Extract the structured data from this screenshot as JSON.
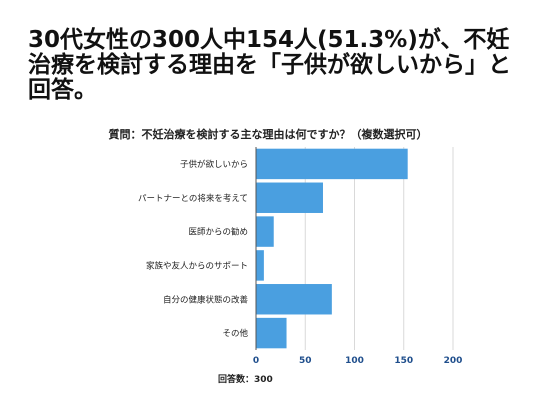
{
  "header": {
    "headline": "30代女性の300人中154人(51.3%)が、不妊治療を検討する理由を「子供が欲しいから」と回答。"
  },
  "chart_data": {
    "type": "bar",
    "orientation": "horizontal",
    "title": "質問：不妊治療を検討する主な理由は何ですか？（複数選択可）",
    "categories": [
      "子供が欲しいから",
      "パートナーとの将来を考えて",
      "医師からの勧め",
      "家族や友人からのサポート",
      "自分の健康状態の改善",
      "その他"
    ],
    "values": [
      154,
      68,
      18,
      8,
      77,
      31
    ],
    "xlabel": "回答数：300",
    "xlim": [
      0,
      200
    ],
    "xticks": [
      0,
      50,
      100,
      150,
      200
    ],
    "bar_color": "#4a9fe0",
    "grid": true,
    "legend": "none"
  }
}
